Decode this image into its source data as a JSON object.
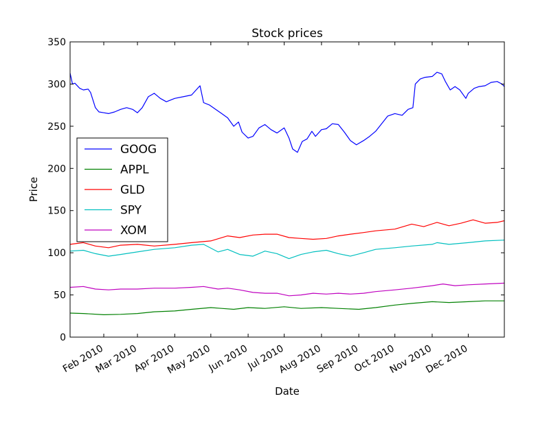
{
  "chart_data": {
    "type": "line",
    "title": "Stock prices",
    "xlabel": "Date",
    "ylabel": "Price",
    "xlim": [
      "2010-01-04",
      "2010-12-31"
    ],
    "ylim": [
      0,
      350
    ],
    "yticks": [
      0,
      50,
      100,
      150,
      200,
      250,
      300,
      350
    ],
    "xticks": [
      {
        "date": "2010-02-01",
        "label": "Feb 2010"
      },
      {
        "date": "2010-03-01",
        "label": "Mar 2010"
      },
      {
        "date": "2010-04-01",
        "label": "Apr 2010"
      },
      {
        "date": "2010-05-01",
        "label": "May 2010"
      },
      {
        "date": "2010-06-01",
        "label": "Jun 2010"
      },
      {
        "date": "2010-07-01",
        "label": "Jul 2010"
      },
      {
        "date": "2010-08-01",
        "label": "Aug 2010"
      },
      {
        "date": "2010-09-01",
        "label": "Sep 2010"
      },
      {
        "date": "2010-10-01",
        "label": "Oct 2010"
      },
      {
        "date": "2010-11-01",
        "label": "Nov 2010"
      },
      {
        "date": "2010-12-01",
        "label": "Dec 2010"
      }
    ],
    "grid": false,
    "legend_position": "center-left",
    "series": [
      {
        "name": "GOOG",
        "color": "#0000ff",
        "points": [
          [
            "2010-01-04",
            313
          ],
          [
            "2010-01-06",
            300
          ],
          [
            "2010-01-08",
            301
          ],
          [
            "2010-01-12",
            295
          ],
          [
            "2010-01-15",
            293
          ],
          [
            "2010-01-19",
            294
          ],
          [
            "2010-01-21",
            290
          ],
          [
            "2010-01-25",
            272
          ],
          [
            "2010-01-28",
            267
          ],
          [
            "2010-02-01",
            266
          ],
          [
            "2010-02-05",
            265
          ],
          [
            "2010-02-10",
            267
          ],
          [
            "2010-02-15",
            270
          ],
          [
            "2010-02-20",
            272
          ],
          [
            "2010-02-25",
            270
          ],
          [
            "2010-03-01",
            266
          ],
          [
            "2010-03-05",
            272
          ],
          [
            "2010-03-10",
            285
          ],
          [
            "2010-03-15",
            289
          ],
          [
            "2010-03-20",
            283
          ],
          [
            "2010-03-25",
            279
          ],
          [
            "2010-04-01",
            283
          ],
          [
            "2010-04-08",
            285
          ],
          [
            "2010-04-15",
            287
          ],
          [
            "2010-04-20",
            295
          ],
          [
            "2010-04-22",
            298
          ],
          [
            "2010-04-25",
            278
          ],
          [
            "2010-04-30",
            275
          ],
          [
            "2010-05-05",
            270
          ],
          [
            "2010-05-10",
            265
          ],
          [
            "2010-05-15",
            260
          ],
          [
            "2010-05-20",
            250
          ],
          [
            "2010-05-24",
            255
          ],
          [
            "2010-05-27",
            243
          ],
          [
            "2010-06-01",
            236
          ],
          [
            "2010-06-05",
            238
          ],
          [
            "2010-06-10",
            248
          ],
          [
            "2010-06-15",
            252
          ],
          [
            "2010-06-20",
            246
          ],
          [
            "2010-06-25",
            242
          ],
          [
            "2010-07-01",
            248
          ],
          [
            "2010-07-05",
            236
          ],
          [
            "2010-07-08",
            223
          ],
          [
            "2010-07-12",
            219
          ],
          [
            "2010-07-16",
            232
          ],
          [
            "2010-07-20",
            235
          ],
          [
            "2010-07-24",
            244
          ],
          [
            "2010-07-27",
            238
          ],
          [
            "2010-08-01",
            246
          ],
          [
            "2010-08-05",
            247
          ],
          [
            "2010-08-10",
            253
          ],
          [
            "2010-08-15",
            252
          ],
          [
            "2010-08-20",
            243
          ],
          [
            "2010-08-25",
            233
          ],
          [
            "2010-08-30",
            228
          ],
          [
            "2010-09-05",
            233
          ],
          [
            "2010-09-10",
            238
          ],
          [
            "2010-09-15",
            244
          ],
          [
            "2010-09-20",
            253
          ],
          [
            "2010-09-25",
            262
          ],
          [
            "2010-10-01",
            265
          ],
          [
            "2010-10-07",
            263
          ],
          [
            "2010-10-12",
            270
          ],
          [
            "2010-10-16",
            272
          ],
          [
            "2010-10-18",
            300
          ],
          [
            "2010-10-22",
            306
          ],
          [
            "2010-10-26",
            308
          ],
          [
            "2010-11-01",
            309
          ],
          [
            "2010-11-05",
            314
          ],
          [
            "2010-11-09",
            312
          ],
          [
            "2010-11-12",
            303
          ],
          [
            "2010-11-16",
            293
          ],
          [
            "2010-11-20",
            297
          ],
          [
            "2010-11-24",
            293
          ],
          [
            "2010-11-29",
            283
          ],
          [
            "2010-12-01",
            289
          ],
          [
            "2010-12-06",
            295
          ],
          [
            "2010-12-10",
            297
          ],
          [
            "2010-12-15",
            298
          ],
          [
            "2010-12-20",
            302
          ],
          [
            "2010-12-25",
            303
          ],
          [
            "2010-12-29",
            300
          ],
          [
            "2010-12-31",
            297
          ]
        ]
      },
      {
        "name": "APPL",
        "color": "#008000",
        "points": [
          [
            "2010-01-04",
            28.5
          ],
          [
            "2010-01-15",
            28
          ],
          [
            "2010-02-01",
            26.5
          ],
          [
            "2010-02-15",
            27
          ],
          [
            "2010-03-01",
            28
          ],
          [
            "2010-03-15",
            30
          ],
          [
            "2010-04-01",
            31
          ],
          [
            "2010-04-15",
            33
          ],
          [
            "2010-05-01",
            35
          ],
          [
            "2010-05-10",
            34
          ],
          [
            "2010-05-20",
            33
          ],
          [
            "2010-06-01",
            35
          ],
          [
            "2010-06-15",
            34
          ],
          [
            "2010-07-01",
            36
          ],
          [
            "2010-07-15",
            34
          ],
          [
            "2010-08-01",
            35
          ],
          [
            "2010-08-15",
            34
          ],
          [
            "2010-09-01",
            33
          ],
          [
            "2010-09-15",
            35
          ],
          [
            "2010-10-01",
            38
          ],
          [
            "2010-10-15",
            40
          ],
          [
            "2010-11-01",
            42
          ],
          [
            "2010-11-15",
            41
          ],
          [
            "2010-12-01",
            42
          ],
          [
            "2010-12-15",
            43
          ],
          [
            "2010-12-31",
            43
          ]
        ]
      },
      {
        "name": "GLD",
        "color": "#ff0000",
        "points": [
          [
            "2010-01-04",
            110
          ],
          [
            "2010-01-15",
            112
          ],
          [
            "2010-01-25",
            108
          ],
          [
            "2010-02-05",
            106
          ],
          [
            "2010-02-15",
            109
          ],
          [
            "2010-03-01",
            110
          ],
          [
            "2010-03-15",
            108
          ],
          [
            "2010-04-01",
            110
          ],
          [
            "2010-04-15",
            112
          ],
          [
            "2010-05-01",
            114
          ],
          [
            "2010-05-15",
            120
          ],
          [
            "2010-05-25",
            118
          ],
          [
            "2010-06-05",
            121
          ],
          [
            "2010-06-15",
            122
          ],
          [
            "2010-06-25",
            122
          ],
          [
            "2010-07-05",
            118
          ],
          [
            "2010-07-15",
            117
          ],
          [
            "2010-07-25",
            116
          ],
          [
            "2010-08-05",
            117
          ],
          [
            "2010-08-15",
            120
          ],
          [
            "2010-08-25",
            122
          ],
          [
            "2010-09-05",
            124
          ],
          [
            "2010-09-15",
            126
          ],
          [
            "2010-10-01",
            128
          ],
          [
            "2010-10-15",
            134
          ],
          [
            "2010-10-25",
            131
          ],
          [
            "2010-11-05",
            136
          ],
          [
            "2010-11-15",
            132
          ],
          [
            "2010-11-25",
            135
          ],
          [
            "2010-12-05",
            139
          ],
          [
            "2010-12-15",
            135
          ],
          [
            "2010-12-25",
            136
          ],
          [
            "2010-12-31",
            138
          ]
        ]
      },
      {
        "name": "SPY",
        "color": "#00bfbf",
        "points": [
          [
            "2010-01-04",
            102
          ],
          [
            "2010-01-15",
            103
          ],
          [
            "2010-01-25",
            99
          ],
          [
            "2010-02-05",
            96
          ],
          [
            "2010-02-15",
            98
          ],
          [
            "2010-03-01",
            101
          ],
          [
            "2010-03-15",
            104
          ],
          [
            "2010-04-01",
            106
          ],
          [
            "2010-04-15",
            109
          ],
          [
            "2010-04-25",
            110
          ],
          [
            "2010-05-07",
            101
          ],
          [
            "2010-05-15",
            104
          ],
          [
            "2010-05-25",
            98
          ],
          [
            "2010-06-05",
            96
          ],
          [
            "2010-06-15",
            102
          ],
          [
            "2010-06-25",
            99
          ],
          [
            "2010-07-05",
            93
          ],
          [
            "2010-07-15",
            98
          ],
          [
            "2010-07-25",
            101
          ],
          [
            "2010-08-05",
            103
          ],
          [
            "2010-08-15",
            99
          ],
          [
            "2010-08-25",
            96
          ],
          [
            "2010-09-05",
            100
          ],
          [
            "2010-09-15",
            104
          ],
          [
            "2010-10-01",
            106
          ],
          [
            "2010-10-15",
            108
          ],
          [
            "2010-11-01",
            110
          ],
          [
            "2010-11-05",
            112
          ],
          [
            "2010-11-15",
            110
          ],
          [
            "2010-12-01",
            112
          ],
          [
            "2010-12-15",
            114
          ],
          [
            "2010-12-31",
            115
          ]
        ]
      },
      {
        "name": "XOM",
        "color": "#bf00bf",
        "points": [
          [
            "2010-01-04",
            59
          ],
          [
            "2010-01-15",
            60
          ],
          [
            "2010-01-25",
            57
          ],
          [
            "2010-02-05",
            56
          ],
          [
            "2010-02-15",
            57
          ],
          [
            "2010-03-01",
            57
          ],
          [
            "2010-03-15",
            58
          ],
          [
            "2010-04-01",
            58
          ],
          [
            "2010-04-15",
            59
          ],
          [
            "2010-04-25",
            60
          ],
          [
            "2010-05-07",
            57
          ],
          [
            "2010-05-15",
            58
          ],
          [
            "2010-05-25",
            56
          ],
          [
            "2010-06-05",
            53
          ],
          [
            "2010-06-15",
            52
          ],
          [
            "2010-06-25",
            52
          ],
          [
            "2010-07-05",
            49
          ],
          [
            "2010-07-15",
            50
          ],
          [
            "2010-07-25",
            52
          ],
          [
            "2010-08-05",
            51
          ],
          [
            "2010-08-15",
            52
          ],
          [
            "2010-08-25",
            51
          ],
          [
            "2010-09-05",
            52
          ],
          [
            "2010-09-15",
            54
          ],
          [
            "2010-10-01",
            56
          ],
          [
            "2010-10-15",
            58
          ],
          [
            "2010-11-01",
            61
          ],
          [
            "2010-11-10",
            63
          ],
          [
            "2010-11-20",
            61
          ],
          [
            "2010-12-01",
            62
          ],
          [
            "2010-12-15",
            63
          ],
          [
            "2010-12-31",
            64
          ]
        ]
      }
    ]
  }
}
